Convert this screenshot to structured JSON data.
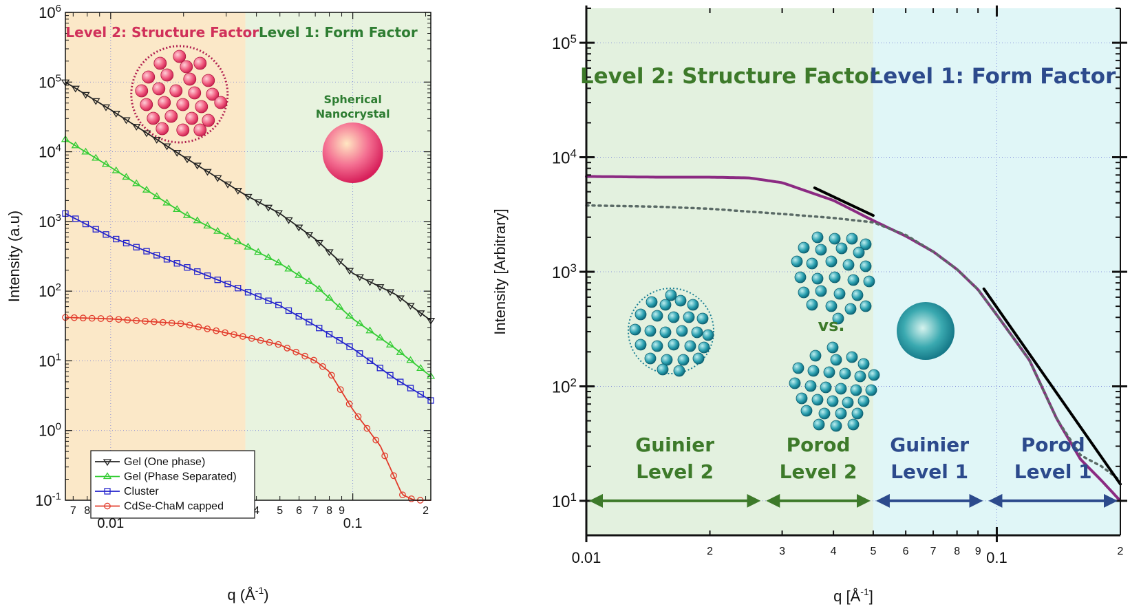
{
  "chart_data": [
    {
      "type": "line",
      "xscale": "log",
      "yscale": "log",
      "xlim": [
        0.0065,
        0.21
      ],
      "ylim": [
        0.1,
        1000000
      ],
      "xlabel": "q (Å",
      "xlabel_sup": "-1",
      "xlabel_end": ")",
      "ylabel": "Intensity (a.u)",
      "x_major_ticks": [
        {
          "v": 0.01,
          "label": "0.01"
        },
        {
          "v": 0.1,
          "label": "0.1"
        }
      ],
      "x_minor_ticks": [
        {
          "v": 0.007,
          "label": "7"
        },
        {
          "v": 0.008,
          "label": "8"
        },
        {
          "v": 0.009,
          "label": "9"
        },
        {
          "v": 0.02,
          "label": "2"
        },
        {
          "v": 0.03,
          "label": "3"
        },
        {
          "v": 0.04,
          "label": "4"
        },
        {
          "v": 0.05,
          "label": "5"
        },
        {
          "v": 0.06,
          "label": "6"
        },
        {
          "v": 0.07,
          "label": "7"
        },
        {
          "v": 0.08,
          "label": "8"
        },
        {
          "v": 0.09,
          "label": "9"
        },
        {
          "v": 0.2,
          "label": "2"
        }
      ],
      "y_ticks": [
        {
          "v": 0.1,
          "base": "10",
          "exp": "-1"
        },
        {
          "v": 1,
          "base": "10",
          "exp": "0"
        },
        {
          "v": 10,
          "base": "10",
          "exp": "1"
        },
        {
          "v": 100,
          "base": "10",
          "exp": "2"
        },
        {
          "v": 1000,
          "base": "10",
          "exp": "3"
        },
        {
          "v": 10000,
          "base": "10",
          "exp": "4"
        },
        {
          "v": 100000,
          "base": "10",
          "exp": "5"
        },
        {
          "v": 1000000,
          "base": "10",
          "exp": "6"
        }
      ],
      "region_split_q": 0.036,
      "regions": [
        {
          "label": "Level 2: Structure Factor",
          "color": "#d0305a",
          "fill": "#fbe8c8"
        },
        {
          "label": "Level 1: Form Factor",
          "color": "#2e7d32",
          "fill": "#e8f3df"
        }
      ],
      "annotation": {
        "line1": "Spherical",
        "line2": "Nanocrystal",
        "color": "#2e7d32"
      },
      "legend_position": "bottom-left",
      "series": [
        {
          "name": "Gel (One phase)",
          "color": "#222222",
          "marker": "triangle-down",
          "x": [
            0.0065,
            0.01,
            0.02,
            0.036,
            0.05,
            0.07,
            0.1,
            0.15,
            0.21
          ],
          "y": [
            100000,
            40000,
            8500,
            2400,
            1300,
            560,
            180,
            90,
            38
          ]
        },
        {
          "name": "Gel (Phase Separated)",
          "color": "#33cc33",
          "marker": "triangle-up",
          "x": [
            0.0065,
            0.01,
            0.02,
            0.036,
            0.05,
            0.07,
            0.1,
            0.15,
            0.21
          ],
          "y": [
            15000,
            6000,
            1300,
            450,
            250,
            120,
            40,
            15,
            6
          ]
        },
        {
          "name": "Cluster",
          "color": "#2222cc",
          "marker": "square",
          "x": [
            0.0065,
            0.01,
            0.02,
            0.036,
            0.05,
            0.07,
            0.1,
            0.15,
            0.21
          ],
          "y": [
            1300,
            600,
            230,
            100,
            62,
            32,
            15,
            5.5,
            2.7
          ]
        },
        {
          "name": "CdSe-ChaM capped",
          "color": "#e23a2a",
          "marker": "circle",
          "x": [
            0.0065,
            0.01,
            0.02,
            0.036,
            0.05,
            0.07,
            0.08,
            0.1,
            0.13,
            0.16,
            0.18,
            0.21
          ],
          "y": [
            42,
            40,
            34,
            22,
            17,
            10,
            7,
            2,
            0.6,
            0.12,
            0.1,
            0.1
          ]
        }
      ]
    },
    {
      "type": "line",
      "xscale": "log",
      "yscale": "log",
      "xlim": [
        0.01,
        0.2
      ],
      "ylim": [
        5,
        200000
      ],
      "xlabel": "q [Å",
      "xlabel_sup": "-1",
      "xlabel_end": "]",
      "ylabel": "Intensity  [Arbitrary]",
      "x_major_ticks": [
        {
          "v": 0.01,
          "label": "0.01"
        },
        {
          "v": 0.1,
          "label": "0.1"
        }
      ],
      "x_minor_ticks": [
        {
          "v": 0.02,
          "label": "2"
        },
        {
          "v": 0.03,
          "label": "3"
        },
        {
          "v": 0.04,
          "label": "4"
        },
        {
          "v": 0.05,
          "label": "5"
        },
        {
          "v": 0.06,
          "label": "6"
        },
        {
          "v": 0.07,
          "label": "7"
        },
        {
          "v": 0.08,
          "label": "8"
        },
        {
          "v": 0.09,
          "label": "9"
        },
        {
          "v": 0.2,
          "label": "2"
        }
      ],
      "y_ticks": [
        {
          "v": 10,
          "base": "10",
          "exp": "1"
        },
        {
          "v": 100,
          "base": "10",
          "exp": "2"
        },
        {
          "v": 1000,
          "base": "10",
          "exp": "3"
        },
        {
          "v": 10000,
          "base": "10",
          "exp": "4"
        },
        {
          "v": 100000,
          "base": "10",
          "exp": "5"
        }
      ],
      "region_split_q": 0.05,
      "regions": [
        {
          "label": "Level 2: Structure Factor",
          "color": "#3d7a2a",
          "fill": "#e3f1df"
        },
        {
          "label": "Level 1: Form Factor",
          "color": "#2c4a8c",
          "fill": "#e0f6f7"
        }
      ],
      "vs_label": "vs.",
      "range_labels": [
        {
          "line1": "Guinier",
          "line2": "Level 2",
          "color": "#3d7a2a",
          "q_from": 0.01,
          "q_to": 0.027
        },
        {
          "line1": "Porod",
          "line2": "Level 2",
          "color": "#3d7a2a",
          "q_from": 0.027,
          "q_to": 0.05
        },
        {
          "line1": "Guinier",
          "line2": "Level 1",
          "color": "#2c4a8c",
          "q_from": 0.05,
          "q_to": 0.094
        },
        {
          "line1": "Porod",
          "line2": "Level 1",
          "color": "#2c4a8c",
          "q_from": 0.094,
          "q_to": 0.2
        }
      ],
      "series": [
        {
          "name": "",
          "color": "#8b2a82",
          "style": "solid",
          "x": [
            0.01,
            0.015,
            0.02,
            0.025,
            0.03,
            0.04,
            0.05,
            0.06,
            0.07,
            0.08,
            0.09,
            0.1,
            0.12,
            0.14,
            0.16,
            0.18,
            0.2
          ],
          "y": [
            6800,
            6700,
            6700,
            6600,
            6000,
            4200,
            2800,
            2050,
            1500,
            1050,
            700,
            420,
            170,
            52,
            23,
            15,
            10
          ]
        },
        {
          "name": "",
          "color": "#5a6a66",
          "style": "dotted",
          "x": [
            0.01,
            0.015,
            0.02,
            0.025,
            0.03,
            0.04,
            0.05,
            0.06,
            0.07,
            0.08,
            0.09,
            0.1,
            0.12,
            0.14,
            0.16,
            0.18,
            0.2
          ],
          "y": [
            3800,
            3700,
            3550,
            3350,
            3200,
            2950,
            2700,
            2100,
            1500,
            1050,
            700,
            420,
            170,
            52,
            25,
            20,
            15
          ]
        },
        {
          "name": "",
          "color": "#000000",
          "style": "solid",
          "x": [
            0.036,
            0.05
          ],
          "y": [
            5400,
            3100
          ]
        },
        {
          "name": "",
          "color": "#000000",
          "style": "solid",
          "x": [
            0.093,
            0.2
          ],
          "y": [
            710,
            14
          ]
        }
      ]
    }
  ]
}
